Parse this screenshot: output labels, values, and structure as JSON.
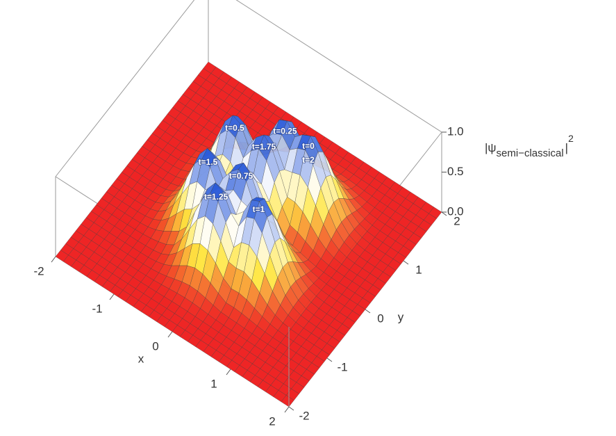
{
  "chart_data": {
    "type": "surface3d",
    "xlabel": "x",
    "ylabel": "y",
    "zlabel": {
      "main": "|ψ",
      "sub": "semi−classical",
      "close": "|",
      "sup": "2"
    },
    "xlim": [
      -2,
      2
    ],
    "ylim": [
      -2,
      2
    ],
    "zlim": [
      0,
      1
    ],
    "xticks": [
      -2,
      -1,
      0,
      1,
      2
    ],
    "yticks": [
      -2,
      -1,
      0,
      1,
      2
    ],
    "zticks": [
      {
        "value": 0,
        "label": "0.0"
      },
      {
        "value": 0.5,
        "label": "0.5"
      },
      {
        "value": 1,
        "label": "1.0"
      }
    ],
    "peaks": [
      {
        "labels": [
          "t=0",
          "t=2"
        ],
        "x": 0.5,
        "y": 0.8,
        "z": 1
      },
      {
        "labels": [
          "t=0.25"
        ],
        "x": 0.1,
        "y": 0.8,
        "z": 1
      },
      {
        "labels": [
          "t=0.5"
        ],
        "x": -0.5,
        "y": 0.4,
        "z": 1
      },
      {
        "labels": [
          "t=0.75"
        ],
        "x": 0.0,
        "y": -0.2,
        "z": 1
      },
      {
        "labels": [
          "t=1"
        ],
        "x": 0.5,
        "y": -0.5,
        "z": 1
      },
      {
        "labels": [
          "t=1.25"
        ],
        "x": -0.1,
        "y": -0.7,
        "z": 1
      },
      {
        "labels": [
          "t=1.5"
        ],
        "x": -0.5,
        "y": -0.3,
        "z": 1
      },
      {
        "labels": [
          "t=1.75"
        ],
        "x": 0.0,
        "y": 0.4,
        "z": 1
      }
    ],
    "colors": [
      "#ee2020",
      "#ffe640",
      "#ffffff",
      "#2456d8"
    ]
  }
}
